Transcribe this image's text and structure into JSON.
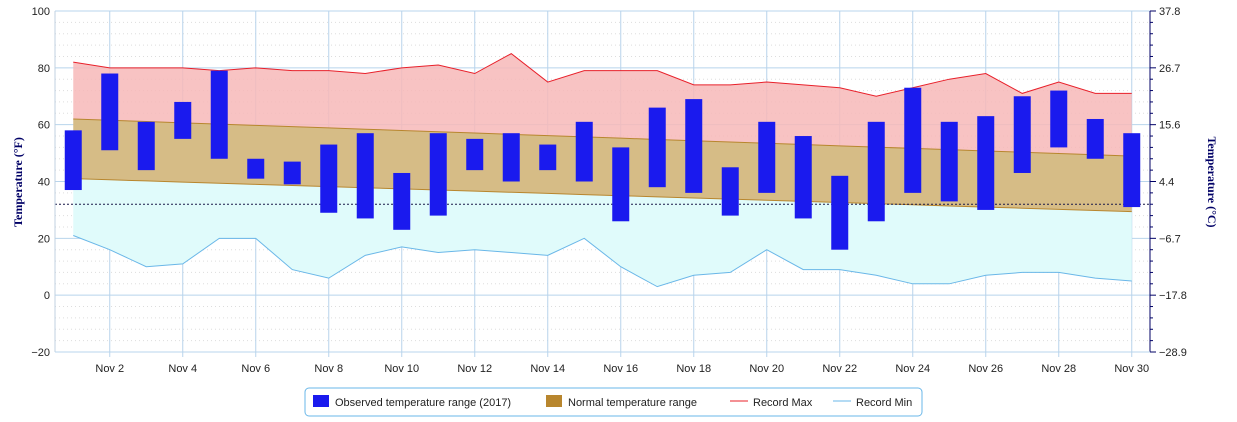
{
  "chart_data": {
    "type": "bar",
    "title": "",
    "xlabel": "",
    "ylabel": "Temperature (°F)",
    "ylabel_right": "Temperature (°C)",
    "ylim": [
      -20,
      100
    ],
    "yticks": [
      -20,
      0,
      20,
      40,
      60,
      80,
      100
    ],
    "ylim_right": [
      -28.9,
      37.8
    ],
    "yticks_right": [
      "37.8",
      "26.7",
      "15.6",
      "4.4",
      "-6.7",
      "-17.8",
      "-28.9"
    ],
    "x": [
      1,
      2,
      3,
      4,
      5,
      6,
      7,
      8,
      9,
      10,
      11,
      12,
      13,
      14,
      15,
      16,
      17,
      18,
      19,
      20,
      21,
      22,
      23,
      24,
      25,
      26,
      27,
      28,
      29,
      30
    ],
    "x_tick_labels": [
      "Nov 2",
      "Nov 4",
      "Nov 6",
      "Nov 8",
      "Nov 10",
      "Nov 12",
      "Nov 14",
      "Nov 16",
      "Nov 18",
      "Nov 20",
      "Nov 22",
      "Nov 24",
      "Nov 26",
      "Nov 28",
      "Nov 30"
    ],
    "x_tick_days": [
      2,
      4,
      6,
      8,
      10,
      12,
      14,
      16,
      18,
      20,
      22,
      24,
      26,
      28,
      30
    ],
    "freezing_line": 32,
    "grid": true,
    "legend_position": "bottom-center",
    "series": [
      {
        "name": "Observed temperature range (2017)",
        "type": "columnrange",
        "color": "#1a1aee",
        "low": [
          37,
          51,
          44,
          55,
          48,
          41,
          39,
          29,
          27,
          23,
          28,
          44,
          40,
          44,
          40,
          26,
          38,
          36,
          28,
          36,
          27,
          16,
          26,
          36,
          33,
          30,
          43,
          52,
          48,
          31
        ],
        "high": [
          58,
          78,
          61,
          68,
          79,
          48,
          47,
          53,
          57,
          43,
          57,
          55,
          57,
          53,
          61,
          52,
          66,
          69,
          45,
          61,
          56,
          42,
          61,
          73,
          61,
          63,
          70,
          72,
          62,
          57
        ]
      },
      {
        "name": "Normal temperature range",
        "type": "arearange",
        "color": "#b8862e",
        "low": [
          41,
          40.6,
          40.2,
          39.8,
          39.4,
          39,
          38.6,
          38.2,
          37.8,
          37.4,
          37,
          36.6,
          36.2,
          35.8,
          35.4,
          35,
          34.6,
          34.2,
          33.8,
          33.4,
          33,
          32.6,
          32.2,
          31.8,
          31.4,
          31,
          30.6,
          30.2,
          29.8,
          29.4
        ],
        "high": [
          62,
          61.55,
          61.1,
          60.65,
          60.2,
          59.75,
          59.3,
          58.85,
          58.4,
          57.95,
          57.5,
          57.05,
          56.6,
          56.15,
          55.7,
          55.25,
          54.8,
          54.35,
          53.9,
          53.45,
          53,
          52.55,
          52.1,
          51.65,
          51.2,
          50.75,
          50.3,
          49.85,
          49.4,
          48.95
        ]
      },
      {
        "name": "Record Max",
        "type": "line",
        "color": "#e8202a",
        "values": [
          82,
          80,
          80,
          80,
          79,
          80,
          79,
          79,
          78,
          80,
          81,
          78,
          85,
          75,
          79,
          79,
          79,
          74,
          74,
          75,
          74,
          73,
          70,
          73,
          76,
          78,
          71,
          75,
          71,
          71
        ]
      },
      {
        "name": "Record Min",
        "type": "line",
        "color": "#6ab7e8",
        "values": [
          21,
          16,
          10,
          11,
          20,
          20,
          9,
          6,
          14,
          17,
          15,
          16,
          15,
          14,
          20,
          10,
          3,
          7,
          8,
          16,
          9,
          9,
          7,
          4,
          4,
          7,
          8,
          8,
          6,
          5
        ]
      }
    ],
    "colors": {
      "record_band_fill": "#f7b8b8",
      "record_min_band_fill": "#e0fbfb",
      "normal_band_fill": "#d6bc86",
      "grid": "#b8d4ec",
      "freezing": "#1a1a4a",
      "axis": "#000066"
    }
  }
}
